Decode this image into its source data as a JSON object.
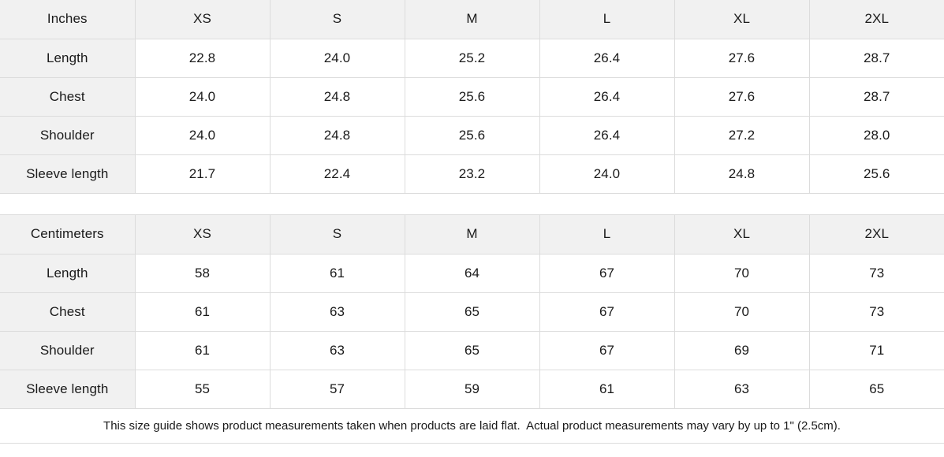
{
  "colors": {
    "cell_bg": "#f1f1f1",
    "border": "#dcdcdc",
    "text": "#1a1a1a"
  },
  "tables": [
    {
      "unit_label": "Inches",
      "sizes": [
        "XS",
        "S",
        "M",
        "L",
        "XL",
        "2XL"
      ],
      "rows": [
        {
          "label": "Length",
          "values": [
            "22.8",
            "24.0",
            "25.2",
            "26.4",
            "27.6",
            "28.7"
          ]
        },
        {
          "label": "Chest",
          "values": [
            "24.0",
            "24.8",
            "25.6",
            "26.4",
            "27.6",
            "28.7"
          ]
        },
        {
          "label": "Shoulder",
          "values": [
            "24.0",
            "24.8",
            "25.6",
            "26.4",
            "27.2",
            "28.0"
          ]
        },
        {
          "label": "Sleeve length",
          "values": [
            "21.7",
            "22.4",
            "23.2",
            "24.0",
            "24.8",
            "25.6"
          ]
        }
      ]
    },
    {
      "unit_label": "Centimeters",
      "sizes": [
        "XS",
        "S",
        "M",
        "L",
        "XL",
        "2XL"
      ],
      "rows": [
        {
          "label": "Length",
          "values": [
            "58",
            "61",
            "64",
            "67",
            "70",
            "73"
          ]
        },
        {
          "label": "Chest",
          "values": [
            "61",
            "63",
            "65",
            "67",
            "70",
            "73"
          ]
        },
        {
          "label": "Shoulder",
          "values": [
            "61",
            "63",
            "65",
            "67",
            "69",
            "71"
          ]
        },
        {
          "label": "Sleeve length",
          "values": [
            "55",
            "57",
            "59",
            "61",
            "63",
            "65"
          ]
        }
      ]
    }
  ],
  "footer_note": "This size guide shows product measurements taken when products are laid flat.  Actual product measurements may vary by up to 1\" (2.5cm)."
}
